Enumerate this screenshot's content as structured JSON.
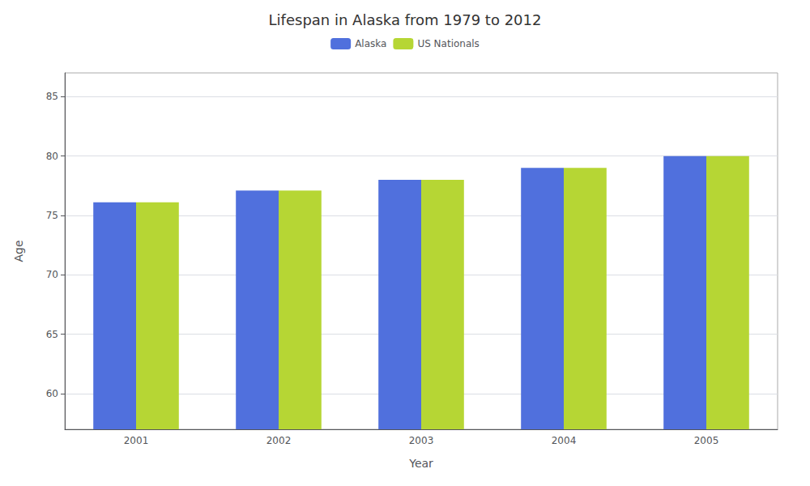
{
  "chart_data": {
    "type": "bar",
    "title": "Lifespan in Alaska from 1979 to 2012",
    "xlabel": "Year",
    "ylabel": "Age",
    "categories": [
      "2001",
      "2002",
      "2003",
      "2004",
      "2005"
    ],
    "series": [
      {
        "name": "Alaska",
        "values": [
          76.1,
          77.1,
          78.0,
          79.0,
          80.0
        ]
      },
      {
        "name": "US Nationals",
        "values": [
          76.1,
          77.1,
          78.0,
          79.0,
          80.0
        ]
      }
    ],
    "ylim": [
      57,
      87
    ],
    "yticks": [
      60,
      65,
      70,
      75,
      80,
      85
    ],
    "grid": true,
    "legend": "top"
  }
}
